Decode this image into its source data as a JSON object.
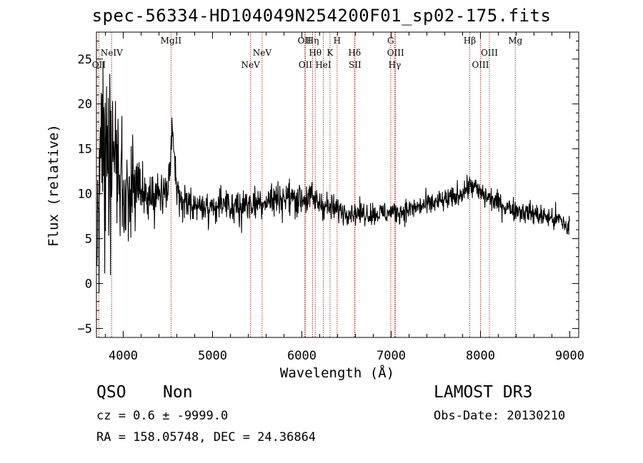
{
  "header": {
    "title": "spec-56334-HD104049N254200F01_sp02-175.fits"
  },
  "info": {
    "class": "QSO",
    "subclass": "Non",
    "survey": "LAMOST DR3",
    "cz": "cz = 0.6 ± -9999.0",
    "coords": "RA = 158.05748, DEC =  24.36864",
    "obs_date": "Obs-Date: 20130210"
  },
  "colors": {
    "spectrum": "#000000",
    "line_marker": "#c0392b",
    "axis": "#000000"
  },
  "chart_data": {
    "type": "line",
    "title": "spec-56334-HD104049N254200F01_sp02-175.fits",
    "xlabel": "Wavelength (Å)",
    "ylabel": "Flux (relative)",
    "xlim": [
      3700,
      9100
    ],
    "ylim": [
      -6,
      28
    ],
    "x_ticks": [
      4000,
      5000,
      6000,
      7000,
      8000,
      9000
    ],
    "y_ticks": [
      -5,
      0,
      5,
      10,
      15,
      20,
      25
    ],
    "x_tick_labels": [
      "4000",
      "5000",
      "6000",
      "7000",
      "8000",
      "9000"
    ],
    "y_tick_labels": [
      "−5",
      "0",
      "5",
      "10",
      "15",
      "20",
      "25"
    ],
    "series": [
      {
        "name": "flux",
        "anchor_wavelength": [
          3700,
          3750,
          3800,
          3850,
          3900,
          3950,
          4000,
          4050,
          4100,
          4150,
          4200,
          4300,
          4400,
          4500,
          4550,
          4600,
          4700,
          4800,
          4900,
          5000,
          5200,
          5400,
          5600,
          5800,
          6000,
          6100,
          6200,
          6300,
          6400,
          6500,
          6700,
          6900,
          7100,
          7300,
          7500,
          7700,
          7900,
          8000,
          8100,
          8300,
          8500,
          8700,
          8900,
          9000
        ],
        "anchor_flux": [
          3,
          11,
          15,
          13,
          14,
          12,
          11,
          11,
          10,
          10,
          10,
          9.5,
          9.5,
          10,
          17,
          10,
          9,
          9,
          8.5,
          8.5,
          8.5,
          8.8,
          9.3,
          9.5,
          9.5,
          9.5,
          9,
          8.5,
          8.2,
          8,
          7.8,
          7.8,
          8,
          8.5,
          9,
          9.5,
          11,
          10,
          9.5,
          8.5,
          8,
          7.5,
          7,
          6
        ],
        "anchor_noise": [
          6,
          9,
          9,
          8,
          7,
          6,
          5,
          4,
          3.5,
          3,
          2.5,
          2,
          1.8,
          1.6,
          1.6,
          1.5,
          1.5,
          1.5,
          1.5,
          1.5,
          1.4,
          1.4,
          1.4,
          1.4,
          1.4,
          1.3,
          1.2,
          1.1,
          1,
          0.9,
          0.9,
          0.9,
          0.9,
          0.9,
          0.9,
          0.9,
          1,
          1,
          0.9,
          0.9,
          0.9,
          0.9,
          1,
          1.2
        ]
      }
    ],
    "spectral_lines": [
      {
        "label": "OII",
        "wavelength": 3727,
        "row": "low"
      },
      {
        "label": "NeIV",
        "wavelength": 3870,
        "row": "mid"
      },
      {
        "label": "MgII",
        "wavelength": 4535,
        "row": "top"
      },
      {
        "label": "NeV",
        "wavelength": 5425,
        "row": "low"
      },
      {
        "label": "NeV",
        "wavelength": 5555,
        "row": "mid"
      },
      {
        "label": "OII",
        "wavelength": 6030,
        "row": "top"
      },
      {
        "label": "OII",
        "wavelength": 6040,
        "row": "low"
      },
      {
        "label": "Hη",
        "wavelength": 6120,
        "row": "top"
      },
      {
        "label": "Hθ",
        "wavelength": 6150,
        "row": "mid"
      },
      {
        "label": "HeI",
        "wavelength": 6240,
        "row": "low"
      },
      {
        "label": "K",
        "wavelength": 6315,
        "row": "mid"
      },
      {
        "label": "H",
        "wavelength": 6395,
        "row": "top"
      },
      {
        "label": "Hδ",
        "wavelength": 6590,
        "row": "mid"
      },
      {
        "label": "SII",
        "wavelength": 6595,
        "row": "low"
      },
      {
        "label": "G",
        "wavelength": 6995,
        "row": "top"
      },
      {
        "label": "Hγ",
        "wavelength": 7040,
        "row": "low"
      },
      {
        "label": "OIII",
        "wavelength": 7050,
        "row": "mid"
      },
      {
        "label": "Hβ",
        "wavelength": 7880,
        "row": "top"
      },
      {
        "label": "OIII",
        "wavelength": 8000,
        "row": "low"
      },
      {
        "label": "OIII",
        "wavelength": 8100,
        "row": "mid"
      },
      {
        "label": "Mg",
        "wavelength": 8390,
        "row": "top"
      }
    ]
  }
}
